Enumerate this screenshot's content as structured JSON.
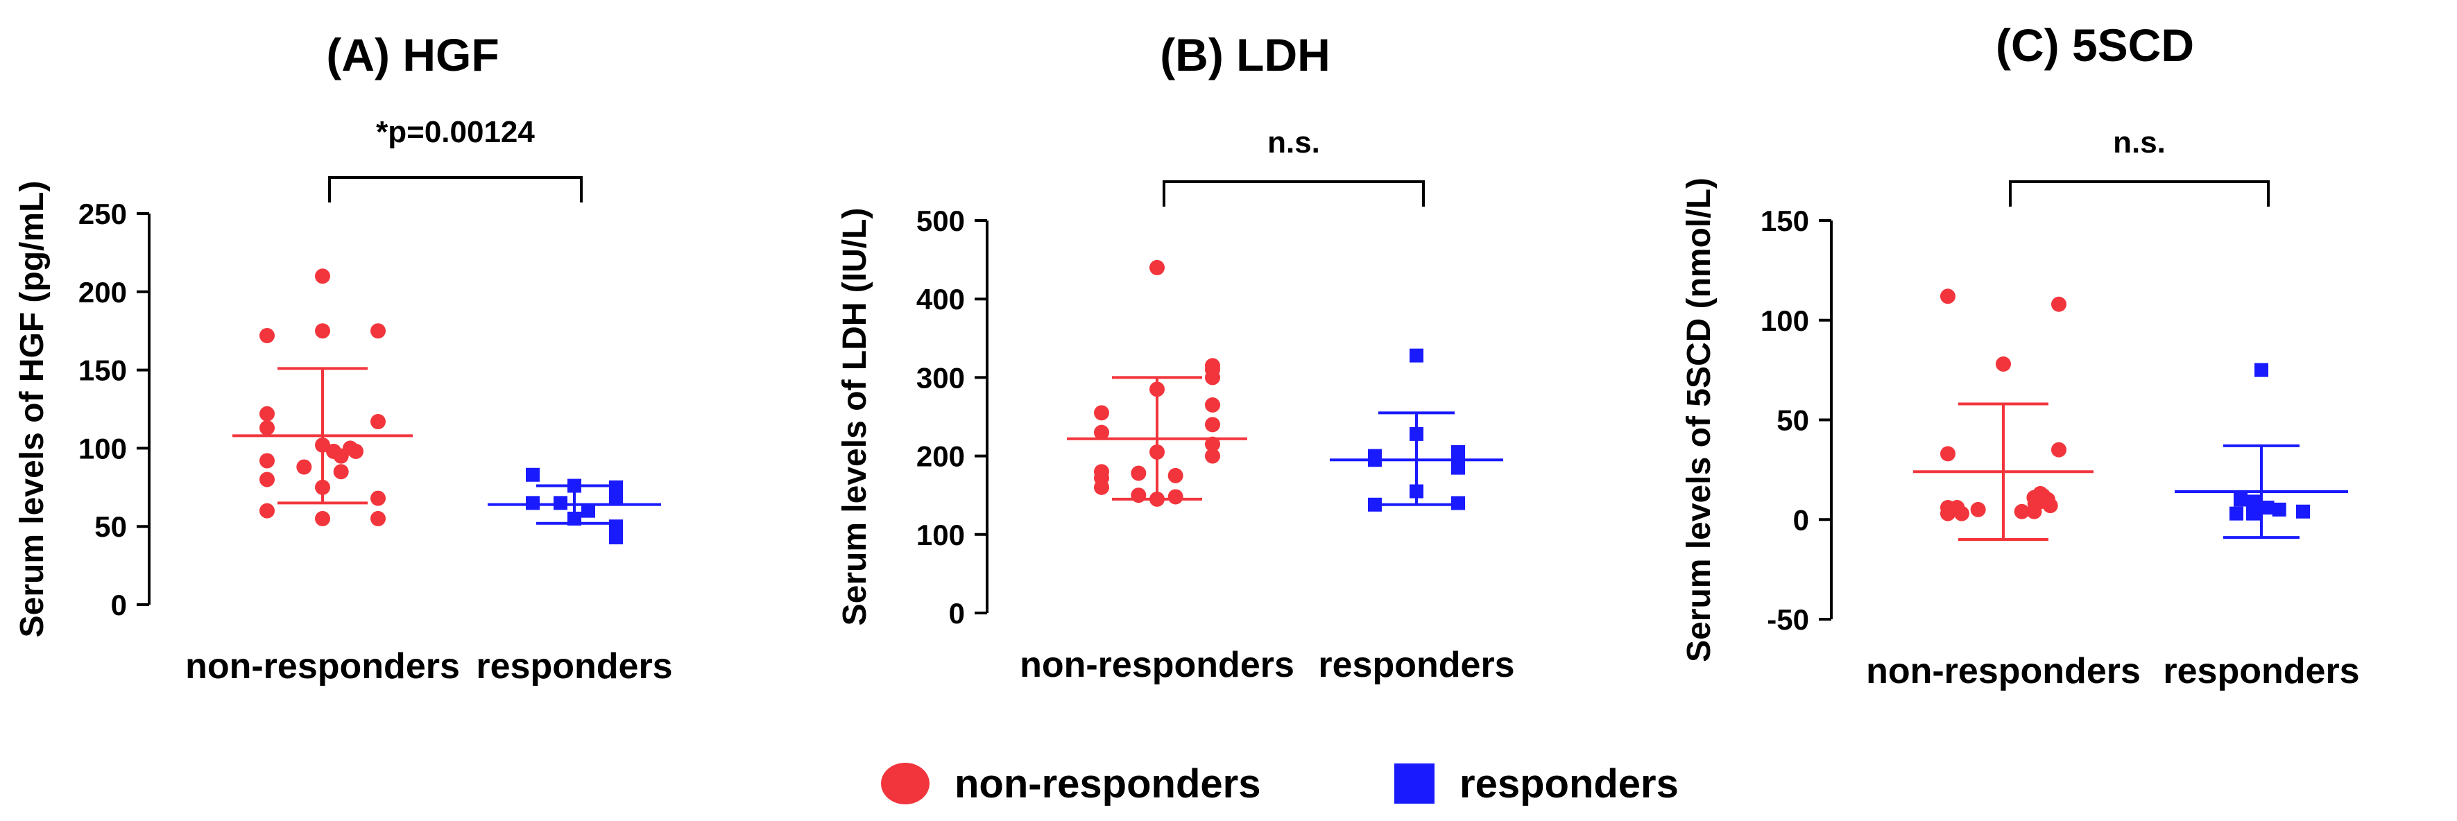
{
  "colors": {
    "non_responders": "#f2353c",
    "responders": "#1a1aff",
    "axis": "#000000",
    "bracket": "#000000"
  },
  "legend": {
    "non_responders": "non-responders",
    "responders": "responders"
  },
  "chart_data": [
    {
      "type": "scatter",
      "title": "(A) HGF",
      "ylabel": "Serum levels of HGF (pg/mL)",
      "xlabel": "",
      "categories": [
        "non-responders",
        "responders"
      ],
      "ylim": [
        0,
        250
      ],
      "yticks": [
        0,
        50,
        100,
        150,
        200,
        250
      ],
      "ytick_labels": [
        "0",
        "50",
        "100",
        "150",
        "200",
        "250"
      ],
      "significance": "*p=0.00124",
      "series": [
        {
          "name": "non-responders",
          "marker": "circle",
          "values": [
            210,
            175,
            175,
            172,
            122,
            117,
            113,
            102,
            100,
            98,
            98,
            95,
            92,
            88,
            85,
            80,
            75,
            68,
            60,
            55,
            55
          ],
          "mean": 108,
          "sd_upper": 151,
          "sd_lower": 65
        },
        {
          "name": "responders",
          "marker": "square",
          "values": [
            83,
            76,
            75,
            68,
            65,
            65,
            60,
            55,
            50,
            43
          ],
          "mean": 64,
          "sd_upper": 76,
          "sd_lower": 52
        }
      ]
    },
    {
      "type": "scatter",
      "title": "(B) LDH",
      "ylabel": "Serum levels of LDH (IU/L)",
      "xlabel": "",
      "categories": [
        "non-responders",
        "responders"
      ],
      "ylim": [
        0,
        500
      ],
      "yticks": [
        0,
        100,
        200,
        300,
        400,
        500
      ],
      "ytick_labels": [
        "0",
        "100",
        "200",
        "300",
        "400",
        "500"
      ],
      "significance": "n.s.",
      "series": [
        {
          "name": "non-responders",
          "marker": "circle",
          "values": [
            440,
            315,
            310,
            300,
            285,
            265,
            255,
            240,
            230,
            215,
            205,
            200,
            180,
            178,
            175,
            172,
            160,
            150,
            148,
            145
          ],
          "mean": 222,
          "sd_upper": 300,
          "sd_lower": 145
        },
        {
          "name": "responders",
          "marker": "square",
          "values": [
            328,
            228,
            205,
            200,
            195,
            185,
            155,
            140,
            138
          ],
          "mean": 195,
          "sd_upper": 255,
          "sd_lower": 138
        }
      ]
    },
    {
      "type": "scatter",
      "title": "(C) 5SCD",
      "ylabel": "Serum levels of 5SCD (nmol/L)",
      "xlabel": "",
      "categories": [
        "non-responders",
        "responders"
      ],
      "ylim": [
        -50,
        150
      ],
      "yticks": [
        -50,
        0,
        50,
        100,
        150
      ],
      "ytick_labels": [
        "-50",
        "0",
        "50",
        "100",
        "150"
      ],
      "significance": "n.s.",
      "series": [
        {
          "name": "non-responders",
          "marker": "circle",
          "values": [
            112,
            108,
            78,
            35,
            33,
            13,
            12,
            11,
            10,
            10,
            9,
            8,
            7,
            6,
            6,
            5,
            4,
            4,
            3,
            3
          ],
          "mean": 24,
          "sd_upper": 58,
          "sd_lower": -10
        },
        {
          "name": "responders",
          "marker": "square",
          "values": [
            75,
            10,
            9,
            8,
            6,
            5,
            4,
            3,
            3
          ],
          "mean": 14,
          "sd_upper": 37,
          "sd_lower": -9
        }
      ]
    }
  ]
}
